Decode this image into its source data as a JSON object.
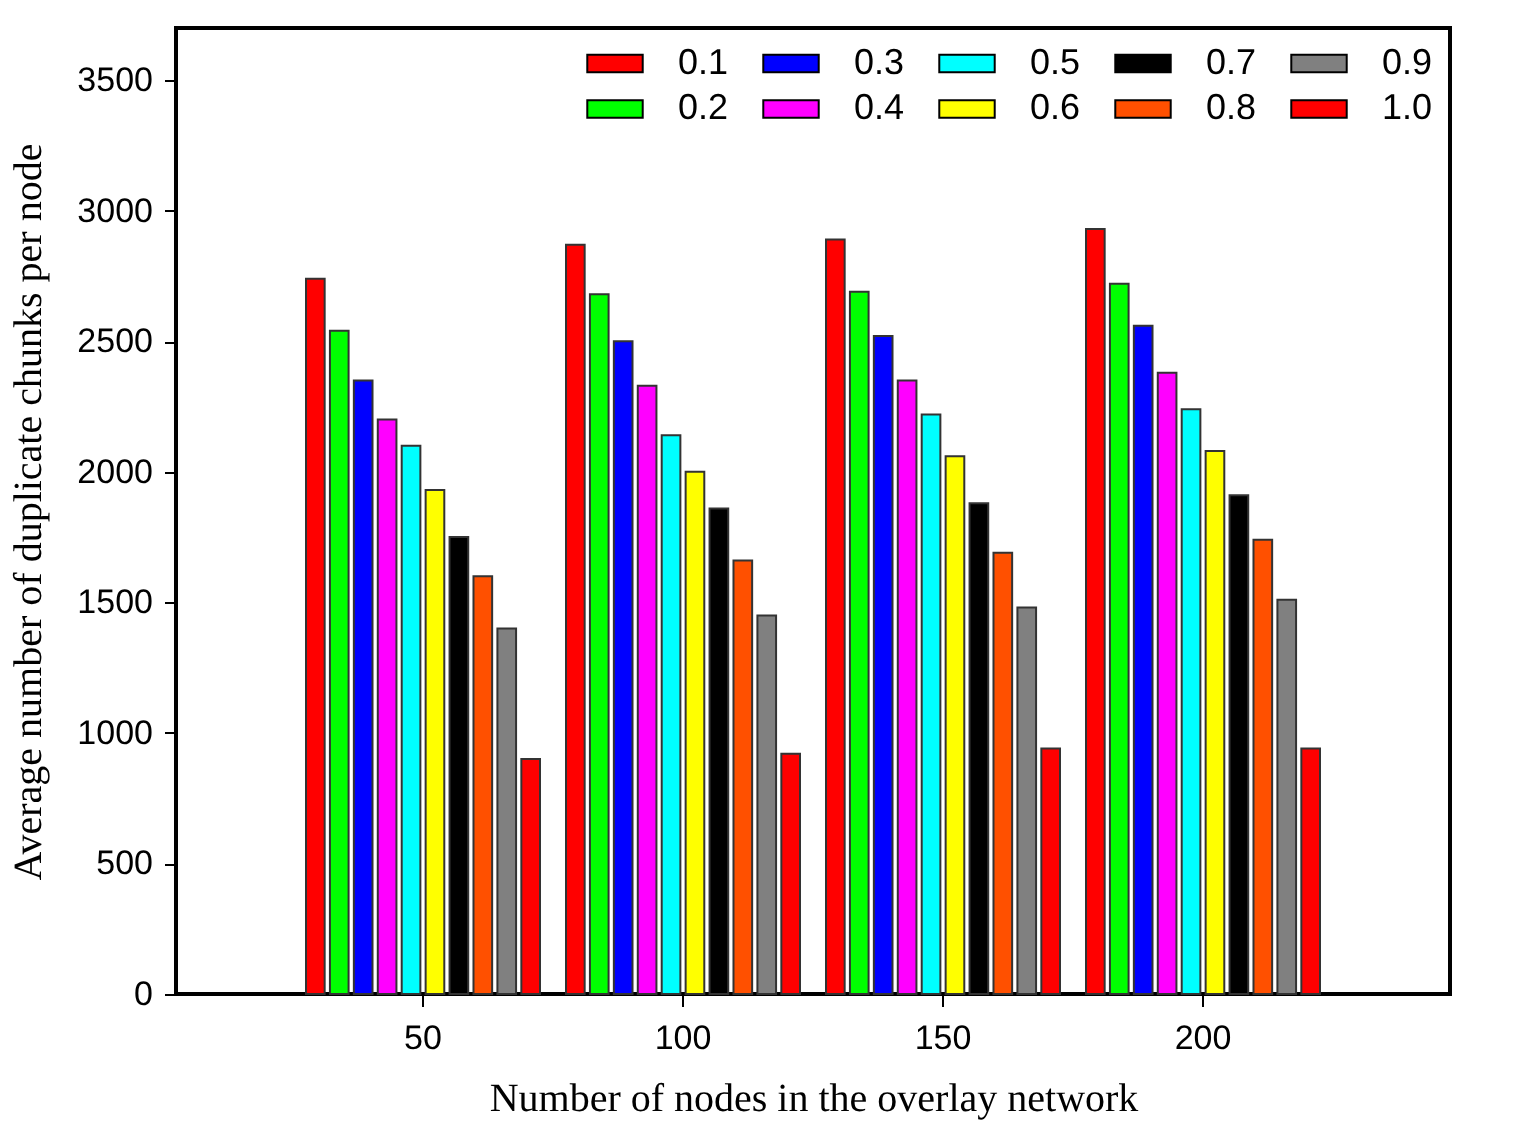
{
  "chart_data": {
    "type": "bar",
    "xlabel": "Number of nodes in the overlay network",
    "ylabel": "Average number of duplicate chunks per node",
    "categories": [
      "50",
      "100",
      "150",
      "200"
    ],
    "series": [
      {
        "name": "0.1",
        "color": "#ff0000",
        "values": [
          2740,
          2870,
          2890,
          2930
        ]
      },
      {
        "name": "0.2",
        "color": "#00ff00",
        "values": [
          2540,
          2680,
          2690,
          2720
        ]
      },
      {
        "name": "0.3",
        "color": "#0000ff",
        "values": [
          2350,
          2500,
          2520,
          2560
        ]
      },
      {
        "name": "0.4",
        "color": "#ff00ff",
        "values": [
          2200,
          2330,
          2350,
          2380
        ]
      },
      {
        "name": "0.5",
        "color": "#00ffff",
        "values": [
          2100,
          2140,
          2220,
          2240
        ]
      },
      {
        "name": "0.6",
        "color": "#ffff00",
        "values": [
          1930,
          2000,
          2060,
          2080
        ]
      },
      {
        "name": "0.7",
        "color": "#000000",
        "values": [
          1750,
          1860,
          1880,
          1910
        ]
      },
      {
        "name": "0.8",
        "color": "#ff5000",
        "values": [
          1600,
          1660,
          1690,
          1740
        ]
      },
      {
        "name": "0.9",
        "color": "#808080",
        "values": [
          1400,
          1450,
          1480,
          1510
        ]
      },
      {
        "name": "1.0",
        "color": "#ff0000",
        "values": [
          900,
          920,
          940,
          940
        ]
      }
    ],
    "ylim": [
      0,
      3700
    ],
    "yticks": [
      0,
      500,
      1000,
      1500,
      2000,
      2500,
      3000,
      3500
    ],
    "grid": false,
    "legend": "top right"
  }
}
